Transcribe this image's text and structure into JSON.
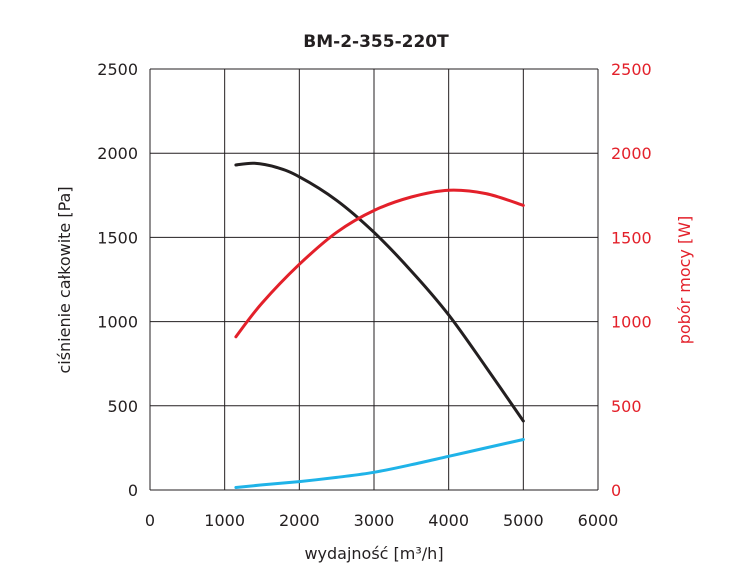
{
  "chart_data": {
    "type": "line",
    "title": "BM-2-355-220T",
    "xlabel": "wydajność [m³/h]",
    "ylabel_left": "ciśnienie całkowite [Pa]",
    "ylabel_right": "pobór mocy [W]",
    "xlim": [
      0,
      6000
    ],
    "ylim_left": [
      0,
      2500
    ],
    "ylim_right": [
      0,
      2500
    ],
    "x_ticks": [
      "0",
      "1000",
      "2000",
      "3000",
      "4000",
      "5000",
      "6000"
    ],
    "y_ticks_left": [
      "0",
      "500",
      "1000",
      "1500",
      "2000",
      "2500"
    ],
    "y_ticks_right": [
      "0",
      "500",
      "1000",
      "1500",
      "2000",
      "2500"
    ],
    "grid": true,
    "series": [
      {
        "axis": "left",
        "color": "#231f20",
        "x": [
          1150,
          1400,
          1700,
          2000,
          2500,
          3000,
          3500,
          4000,
          4500,
          5000
        ],
        "values": [
          1930,
          1940,
          1915,
          1860,
          1720,
          1530,
          1300,
          1040,
          730,
          410
        ]
      },
      {
        "axis": "right",
        "color": "#e3202a",
        "x": [
          1150,
          1500,
          2000,
          2500,
          3000,
          3500,
          4000,
          4500,
          5000
        ],
        "values": [
          910,
          1110,
          1340,
          1530,
          1660,
          1740,
          1780,
          1760,
          1690
        ]
      },
      {
        "axis": "left",
        "color": "#1fb3e8",
        "x": [
          1150,
          1500,
          2000,
          2500,
          3000,
          3500,
          4000,
          4500,
          5000
        ],
        "values": [
          15,
          30,
          50,
          75,
          105,
          150,
          200,
          250,
          300
        ]
      }
    ]
  }
}
